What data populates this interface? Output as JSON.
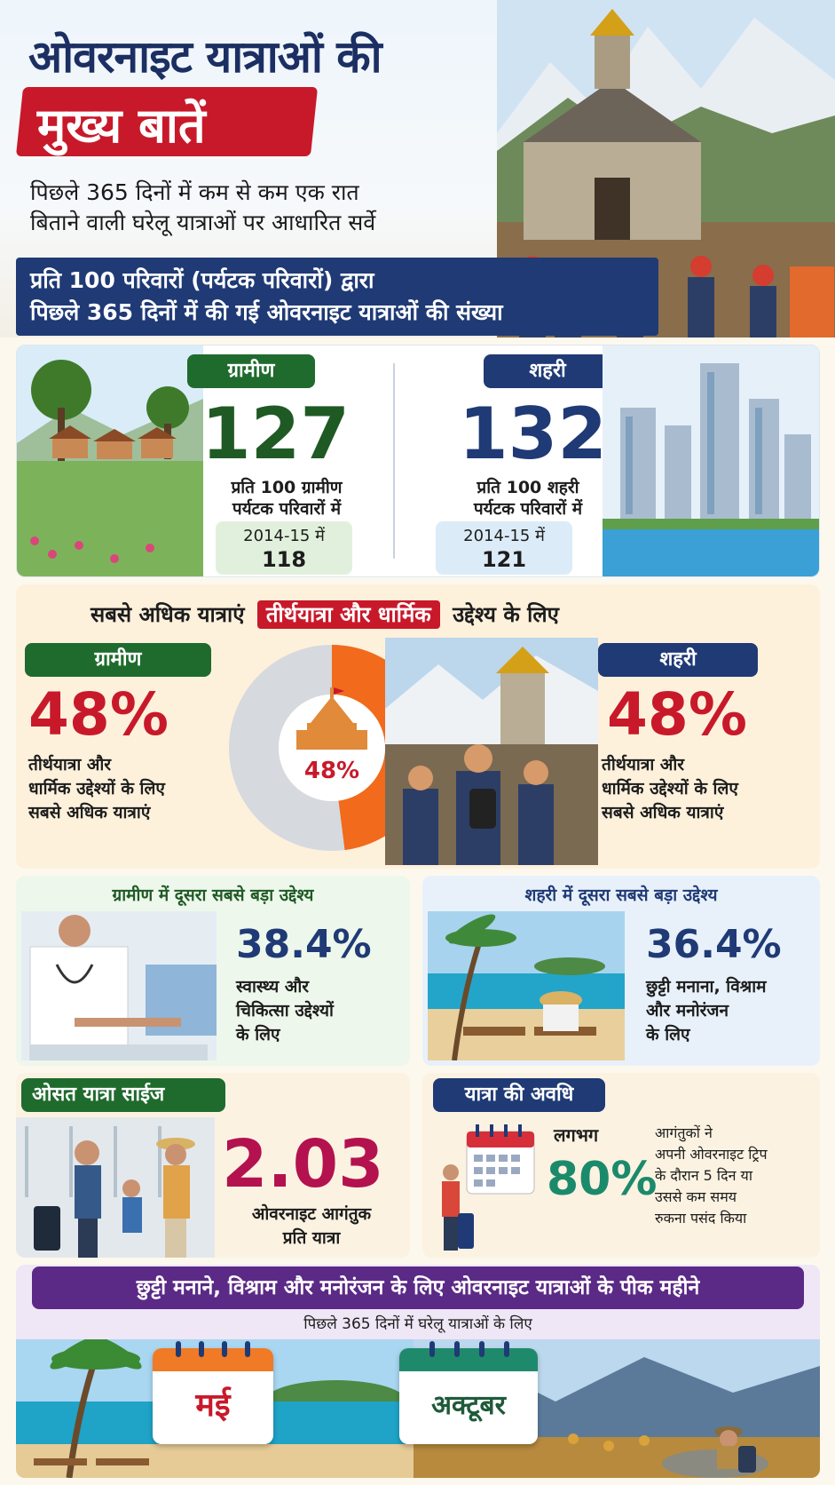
{
  "header": {
    "title_line1": "ओवरनाइट यात्राओं की",
    "title_line2": "मुख्य बातें",
    "subtitle_line1": "पिछले 365 दिनों में कम से कम एक रात",
    "subtitle_line2": "बिताने वाली घरेलू यात्राओं पर आधारित सर्वे",
    "band_line1": "प्रति 100 परिवारों (पर्यटक परिवारों) द्वारा",
    "band_line2": "पिछले 365 दिनों में की गई ओवरनाइट यात्राओं की संख्या"
  },
  "trips": {
    "rural": {
      "label": "ग्रामीण",
      "value": "127",
      "desc_line1": "प्रति 100 ग्रामीण",
      "desc_line2": "पर्यटक परिवारों में",
      "prev_label": "2014-15 में",
      "prev_value": "118"
    },
    "urban": {
      "label": "शहरी",
      "value": "132",
      "desc_line1": "प्रति 100 शहरी",
      "desc_line2": "पर्यटक परिवारों में",
      "prev_label": "2014-15 में",
      "prev_value": "121"
    }
  },
  "purpose": {
    "heading_pre": "सबसे अधिक यात्राएं",
    "heading_highlight": "तीर्थयात्रा और धार्मिक",
    "heading_post": "उद्देश्य के लिए",
    "rural": {
      "label": "ग्रामीण",
      "value": "48%",
      "desc_line1": "तीर्थयात्रा और",
      "desc_line2": "धार्मिक उद्देश्यों के लिए",
      "desc_line3": "सबसे अधिक यात्राएं"
    },
    "urban": {
      "label": "शहरी",
      "value": "48%",
      "desc_line1": "तीर्थयात्रा और",
      "desc_line2": "धार्मिक उद्देश्यों के लिए",
      "desc_line3": "सबसे अधिक यात्राएं"
    },
    "donut_value": "48%",
    "donut_fraction": 0.48,
    "colors": {
      "fill": "#f26a1b",
      "rest": "#d6d9de"
    }
  },
  "second_purpose": {
    "rural": {
      "title": "ग्रामीण में दूसरा सबसे बड़ा उद्देश्य",
      "value": "38.4%",
      "desc_line1": "स्वास्थ्य और",
      "desc_line2": "चिकित्सा उद्देश्यों",
      "desc_line3": "के लिए"
    },
    "urban": {
      "title": "शहरी में दूसरा सबसे बड़ा उद्देश्य",
      "value": "36.4%",
      "desc_line1": "छुट्टी मनाना, विश्राम",
      "desc_line2": "और मनोरंजन",
      "desc_line3": "के लिए"
    }
  },
  "trip_size": {
    "label": "ओसत यात्रा साईज",
    "value": "2.03",
    "desc_line1": "ओवरनाइट आगंतुक",
    "desc_line2": "प्रति यात्रा"
  },
  "duration": {
    "label": "यात्रा की अवधि",
    "approx": "लगभग",
    "value": "80%",
    "desc_line1": "आगंतुकों ने",
    "desc_line2": "अपनी ओवरनाइट ट्रिप",
    "desc_line3": "के दौरान 5 दिन या",
    "desc_line4": "उससे कम समय",
    "desc_line5": "रुकना पसंद किया"
  },
  "peak": {
    "heading": "छुट्टी मनाने, विश्राम और मनोरंजन के लिए ओवरनाइट यात्राओं के पीक महीने",
    "subheading": "पिछले 365 दिनों में घरेलू यात्राओं के लिए",
    "month1": "मई",
    "month2": "अक्टूबर"
  }
}
